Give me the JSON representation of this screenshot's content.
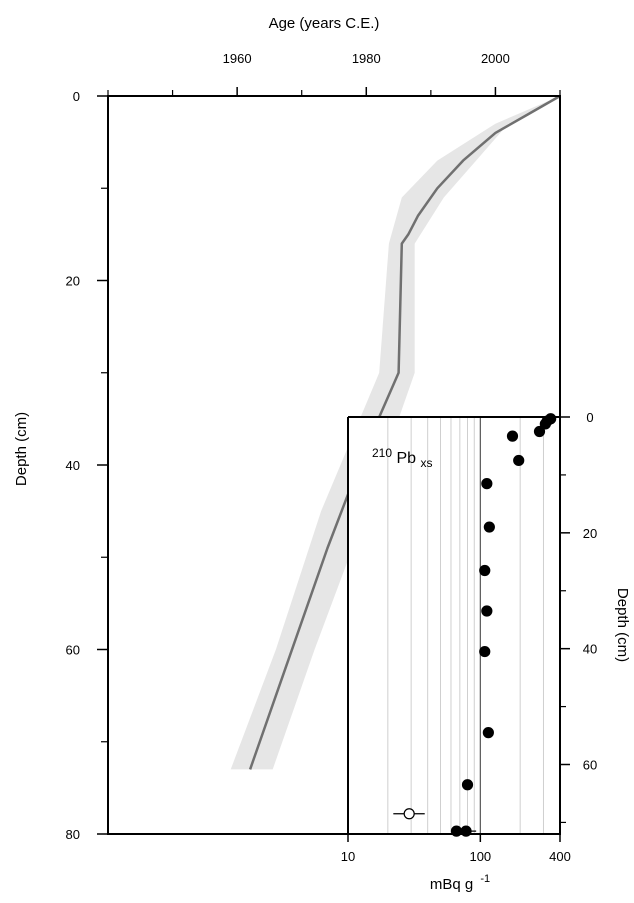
{
  "chart_data": [
    {
      "type": "line",
      "xlabel": "Age (years C.E.)",
      "ylabel": "Depth (cm)",
      "xlim": [
        1940,
        2010
      ],
      "ylim": [
        0,
        80
      ],
      "x_tick_labels": [
        "1960",
        "1980",
        "2000"
      ],
      "x_ticks": [
        1960,
        1980,
        2000
      ],
      "x_minor_ticks": [
        1940,
        1950,
        1970,
        1990,
        2010
      ],
      "y_tick_labels": [
        "0",
        "20",
        "40",
        "60",
        "80"
      ],
      "y_ticks": [
        0,
        20,
        40,
        60,
        80
      ],
      "y_minor_ticks": [
        10,
        30,
        50,
        70
      ],
      "series": [
        {
          "kind": "age-depth model",
          "color": "#707070",
          "points": [
            {
              "age": 2010.0,
              "depth": 0.0
            },
            {
              "age": 2005.0,
              "depth": 2.0
            },
            {
              "age": 2000.0,
              "depth": 4.0
            },
            {
              "age": 1995.0,
              "depth": 7.0
            },
            {
              "age": 1991.0,
              "depth": 10.0
            },
            {
              "age": 1988.0,
              "depth": 13.0
            },
            {
              "age": 1986.5,
              "depth": 15.0
            },
            {
              "age": 1985.5,
              "depth": 16.0
            },
            {
              "age": 1985.0,
              "depth": 30.0
            },
            {
              "age": 1980.0,
              "depth": 38.0
            },
            {
              "age": 1974.0,
              "depth": 49.0
            },
            {
              "age": 1968.0,
              "depth": 61.0
            },
            {
              "age": 1962.0,
              "depth": 73.0
            }
          ]
        },
        {
          "kind": "uncertainty band",
          "color": "#e6e6e6",
          "points": [
            {
              "depth": 0.0,
              "min_age": 2010.0,
              "max_age": 2010.0
            },
            {
              "depth": 3.0,
              "min_age": 2000.0,
              "max_age": 2002.0
            },
            {
              "depth": 7.0,
              "min_age": 1991.0,
              "max_age": 1997.0
            },
            {
              "depth": 11.0,
              "min_age": 1985.5,
              "max_age": 1992.0
            },
            {
              "depth": 16.0,
              "min_age": 1983.5,
              "max_age": 1987.5
            },
            {
              "depth": 30.0,
              "min_age": 1982.0,
              "max_age": 1987.5
            },
            {
              "depth": 45.0,
              "min_age": 1973.0,
              "max_age": 1980.0
            },
            {
              "depth": 60.0,
              "min_age": 1966.0,
              "max_age": 1972.0
            },
            {
              "depth": 73.0,
              "min_age": 1959.0,
              "max_age": 1965.5
            }
          ]
        }
      ]
    },
    {
      "type": "scatter",
      "title_main": "210",
      "title_mid": "Pb",
      "title_sub": "xs",
      "xlabel_main": "mBq g",
      "xlabel_sup": "-1",
      "ylabel": "Depth (cm)",
      "xscale": "log",
      "xlim": [
        10,
        400
      ],
      "ylim": [
        0,
        72
      ],
      "x_tick_labels": [
        "10",
        "100",
        "400"
      ],
      "x_ticks": [
        10,
        100,
        400
      ],
      "y_tick_labels": [
        "0",
        "20",
        "40",
        "60"
      ],
      "y_ticks": [
        0,
        20,
        40,
        60
      ],
      "y_minor_ticks": [
        10,
        30,
        50,
        70
      ],
      "reference_line_x": 100,
      "grid": "vertical log grid",
      "points": [
        {
          "x": 340,
          "y": 0.3,
          "filled": true
        },
        {
          "x": 320,
          "y": 0.7,
          "filled": true
        },
        {
          "x": 310,
          "y": 1.2,
          "filled": true
        },
        {
          "x": 280,
          "y": 2.5,
          "filled": true
        },
        {
          "x": 175,
          "y": 3.3,
          "filled": true
        },
        {
          "x": 195,
          "y": 7.5,
          "filled": true
        },
        {
          "x": 112,
          "y": 11.5,
          "filled": true
        },
        {
          "x": 117,
          "y": 19.0,
          "filled": true
        },
        {
          "x": 108,
          "y": 26.5,
          "filled": true
        },
        {
          "x": 112,
          "y": 33.5,
          "filled": true
        },
        {
          "x": 108,
          "y": 40.5,
          "filled": true
        },
        {
          "x": 115,
          "y": 54.5,
          "filled": true
        },
        {
          "x": 80,
          "y": 63.5,
          "filled": true
        },
        {
          "x": 29,
          "y": 68.5,
          "filled": false,
          "x_err_low": 22,
          "x_err_high": 38
        },
        {
          "x": 66,
          "y": 71.5,
          "filled": true,
          "x_err_low": 63,
          "x_err_high": 93
        },
        {
          "x": 78,
          "y": 71.5,
          "filled": true
        }
      ]
    }
  ]
}
